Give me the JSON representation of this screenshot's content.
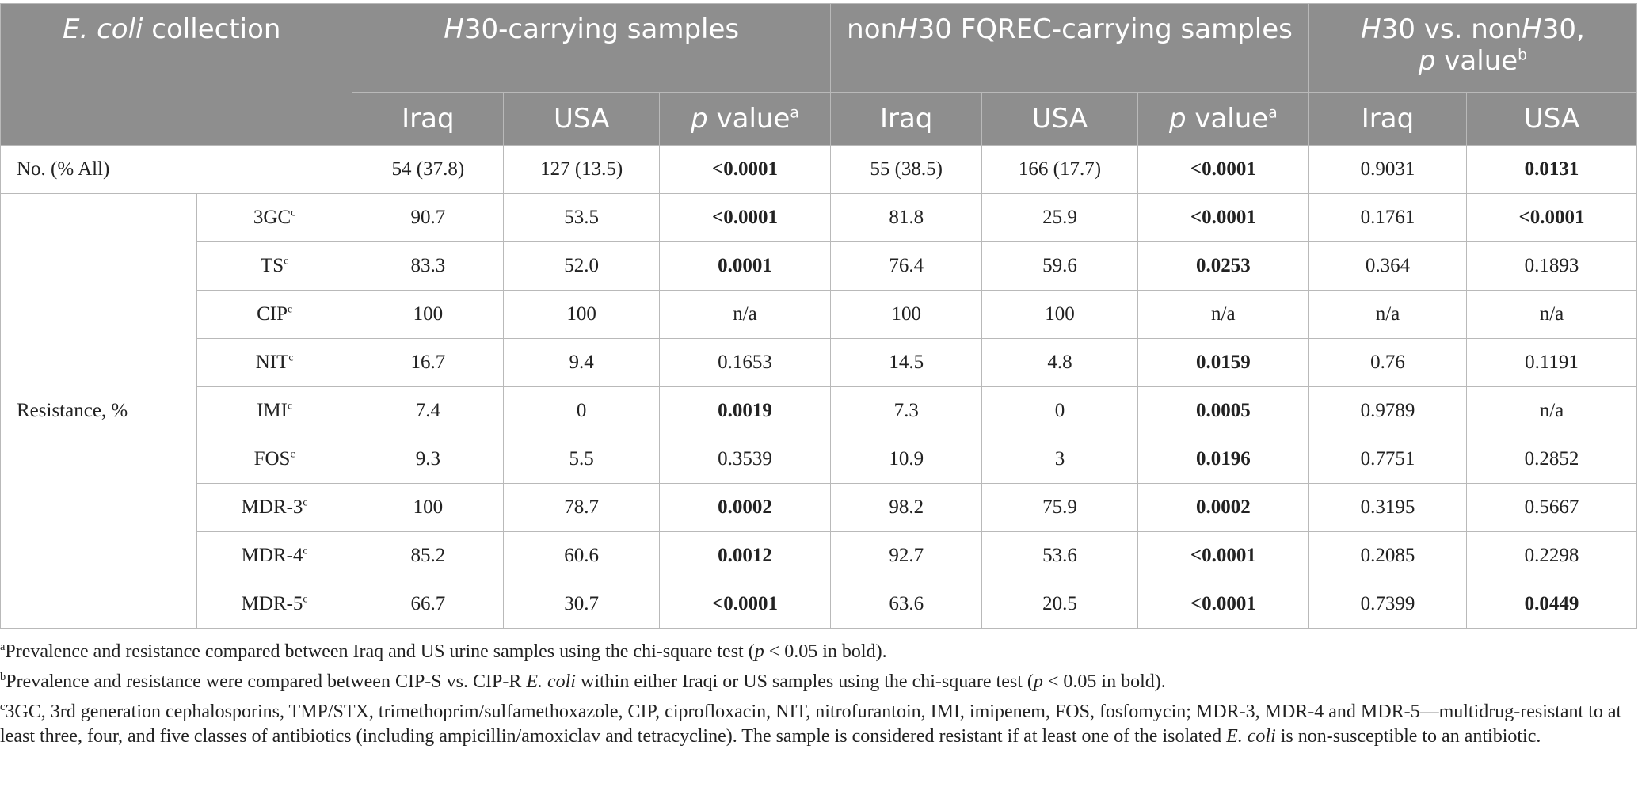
{
  "header": {
    "collection": [
      "E. coli",
      " collection"
    ],
    "group_h30": [
      "H",
      "30-carrying samples"
    ],
    "group_nonh30": [
      "non",
      "H",
      "30 FQREC-carrying samples"
    ],
    "group_compare": [
      "H",
      "30 vs. non",
      "H",
      "30, ",
      "p",
      " value",
      "b"
    ],
    "sub": {
      "iraq": "Iraq",
      "usa": "USA",
      "p": "p",
      "pvalue": " value",
      "sup_a": "a"
    }
  },
  "rows": {
    "no": {
      "label": "No. (% All)",
      "values": [
        "54 (37.8)",
        "127 (13.5)",
        "<0.0001",
        "55 (38.5)",
        "166 (17.7)",
        "<0.0001",
        "0.9031",
        "0.0131"
      ]
    },
    "resistance_label": "Resistance, %",
    "resistance": [
      {
        "label": "3GC",
        "sup": "c",
        "values": [
          "90.7",
          "53.5",
          "<0.0001",
          "81.8",
          "25.9",
          "<0.0001",
          "0.1761",
          "<0.0001"
        ]
      },
      {
        "label": "TS",
        "sup": "c",
        "values": [
          "83.3",
          "52.0",
          "0.0001",
          "76.4",
          "59.6",
          "0.0253",
          "0.364",
          "0.1893"
        ]
      },
      {
        "label": "CIP",
        "sup": "c",
        "values": [
          "100",
          "100",
          "n/a",
          "100",
          "100",
          "n/a",
          "n/a",
          "n/a"
        ]
      },
      {
        "label": "NIT",
        "sup": "c",
        "values": [
          "16.7",
          "9.4",
          "0.1653",
          "14.5",
          "4.8",
          "0.0159",
          "0.76",
          "0.1191"
        ]
      },
      {
        "label": "IMI",
        "sup": "c",
        "values": [
          "7.4",
          "0",
          "0.0019",
          "7.3",
          "0",
          "0.0005",
          "0.9789",
          "n/a"
        ]
      },
      {
        "label": "FOS",
        "sup": "c",
        "values": [
          "9.3",
          "5.5",
          "0.3539",
          "10.9",
          "3",
          "0.0196",
          "0.7751",
          "0.2852"
        ]
      },
      {
        "label": "MDR-3",
        "sup": "c",
        "values": [
          "100",
          "78.7",
          "0.0002",
          "98.2",
          "75.9",
          "0.0002",
          "0.3195",
          "0.5667"
        ]
      },
      {
        "label": "MDR-4",
        "sup": "c",
        "values": [
          "85.2",
          "60.6",
          "0.0012",
          "92.7",
          "53.6",
          "<0.0001",
          "0.2085",
          "0.2298"
        ]
      },
      {
        "label": "MDR-5",
        "sup": "c",
        "values": [
          "66.7",
          "30.7",
          "<0.0001",
          "63.6",
          "20.5",
          "<0.0001",
          "0.7399",
          "0.0449"
        ]
      }
    ]
  },
  "footnotes": {
    "a": [
      "a",
      "Prevalence and resistance compared between Iraq and US urine samples using the chi-square test (",
      "p",
      " < 0.05 in bold)."
    ],
    "b": [
      "b",
      "Prevalence and resistance were compared between CIP-S vs. CIP-R ",
      "E. coli",
      " within either Iraqi or US samples using the chi-square test (",
      "p",
      " < 0.05 in bold)."
    ],
    "c": [
      "c",
      "3GC, 3rd generation cephalosporins, TMP/STX, trimethoprim/sulfamethoxazole, CIP, ciprofloxacin, NIT, nitrofurantoin, IMI, imipenem, FOS, fosfomycin; MDR-3, MDR-4 and MDR-5—multidrug-resistant to at least three, four, and five classes of antibiotics (including ampicillin/amoxiclav and tetracycline). The sample is considered resistant if at least one of the isolated ",
      "E. coli",
      " is non-susceptible to an antibiotic."
    ]
  }
}
